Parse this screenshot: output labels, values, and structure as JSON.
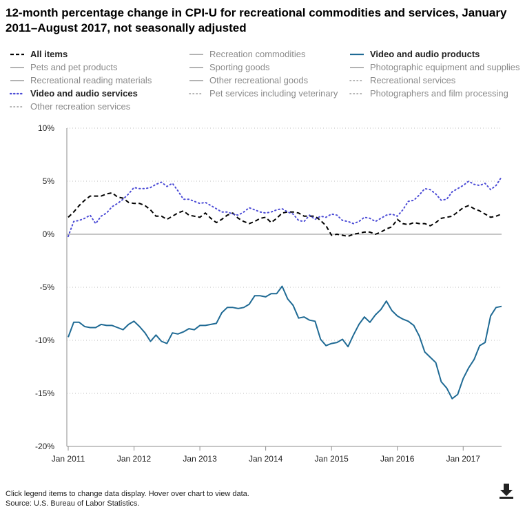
{
  "title": "12-month percentage change in CPI-U for recreational commodities and services, January 2011–August 2017, not seasonally adjusted",
  "legend": [
    {
      "label": "All items",
      "active": true,
      "style": "dashed",
      "color": "#000000"
    },
    {
      "label": "Recreation commodities",
      "active": false,
      "style": "solid",
      "color": "#9a9a9a"
    },
    {
      "label": "Video and audio products",
      "active": true,
      "style": "solid",
      "color": "#1f6a94"
    },
    {
      "label": "Pets and pet products",
      "active": false,
      "style": "solid",
      "color": "#9a9a9a"
    },
    {
      "label": "Sporting goods",
      "active": false,
      "style": "solid",
      "color": "#9a9a9a"
    },
    {
      "label": "Photographic equipment and supplies",
      "active": false,
      "style": "solid",
      "color": "#9a9a9a"
    },
    {
      "label": "Recreational reading materials",
      "active": false,
      "style": "solid",
      "color": "#9a9a9a"
    },
    {
      "label": "Other recreational goods",
      "active": false,
      "style": "solid",
      "color": "#9a9a9a"
    },
    {
      "label": "Recreational services",
      "active": false,
      "style": "dotted",
      "color": "#9a9a9a"
    },
    {
      "label": "Video and audio services",
      "active": true,
      "style": "dotted",
      "color": "#4b4bd6"
    },
    {
      "label": "Pet services including veterinary",
      "active": false,
      "style": "dotted",
      "color": "#9a9a9a"
    },
    {
      "label": "Photographers and film processing",
      "active": false,
      "style": "dotted",
      "color": "#9a9a9a"
    },
    {
      "label": "Other recreation services",
      "active": false,
      "style": "dotted",
      "color": "#9a9a9a"
    }
  ],
  "footer": {
    "note": "Click legend items to change data display. Hover over chart to view data.",
    "source": "Source: U.S. Bureau of Labor Statistics."
  },
  "download_icon": "download-icon",
  "chart_data": {
    "type": "line",
    "title": "12-month percentage change in CPI-U for recreational commodities and services, January 2011–August 2017, not seasonally adjusted",
    "xlabel": "",
    "ylabel": "",
    "ylim": [
      -20,
      10
    ],
    "yticks": [
      10,
      5,
      0,
      -5,
      -10,
      -15,
      -20
    ],
    "ytick_labels": [
      "10%",
      "5%",
      "0%",
      "-5%",
      "-10%",
      "-15%",
      "-20%"
    ],
    "xticks": [
      "Jan 2011",
      "Jan 2012",
      "Jan 2013",
      "Jan 2014",
      "Jan 2015",
      "Jan 2016",
      "Jan 2017"
    ],
    "x_start": "Jan 2011",
    "n_months": 80,
    "grid": "horizontal dotted",
    "legend_position": "top",
    "series": [
      {
        "name": "All items",
        "style": "dashed",
        "color": "#000000",
        "values": [
          1.6,
          2.1,
          2.7,
          3.2,
          3.6,
          3.6,
          3.6,
          3.8,
          3.9,
          3.5,
          3.4,
          3.0,
          2.9,
          2.9,
          2.7,
          2.3,
          1.7,
          1.7,
          1.4,
          1.7,
          2.0,
          2.2,
          1.8,
          1.7,
          1.6,
          2.0,
          1.5,
          1.1,
          1.4,
          1.8,
          2.0,
          1.5,
          1.2,
          1.0,
          1.2,
          1.5,
          1.6,
          1.1,
          1.5,
          2.0,
          2.1,
          2.1,
          2.0,
          1.7,
          1.7,
          1.7,
          1.3,
          0.8,
          -0.1,
          0.0,
          -0.1,
          -0.2,
          0.0,
          0.1,
          0.2,
          0.2,
          0.0,
          0.2,
          0.5,
          0.7,
          1.4,
          1.0,
          0.9,
          1.1,
          1.0,
          1.0,
          0.8,
          1.1,
          1.5,
          1.6,
          1.7,
          2.1,
          2.5,
          2.7,
          2.4,
          2.2,
          1.9,
          1.6,
          1.7,
          1.9
        ]
      },
      {
        "name": "Video and audio products",
        "style": "solid",
        "color": "#1f6a94",
        "values": [
          -9.7,
          -8.3,
          -8.3,
          -8.7,
          -8.8,
          -8.8,
          -8.5,
          -8.6,
          -8.6,
          -8.8,
          -9.0,
          -8.5,
          -8.2,
          -8.7,
          -9.3,
          -10.1,
          -9.5,
          -10.1,
          -10.3,
          -9.3,
          -9.4,
          -9.2,
          -8.9,
          -9.0,
          -8.6,
          -8.6,
          -8.5,
          -8.4,
          -7.4,
          -6.9,
          -6.9,
          -7.0,
          -6.9,
          -6.6,
          -5.8,
          -5.8,
          -5.9,
          -5.6,
          -5.6,
          -4.9,
          -6.1,
          -6.7,
          -7.9,
          -7.8,
          -8.1,
          -8.2,
          -9.9,
          -10.5,
          -10.3,
          -10.2,
          -9.9,
          -10.6,
          -9.5,
          -8.5,
          -7.8,
          -8.3,
          -7.6,
          -7.1,
          -6.3,
          -7.2,
          -7.7,
          -8.0,
          -8.2,
          -8.6,
          -9.6,
          -11.1,
          -11.6,
          -12.1,
          -13.9,
          -14.5,
          -15.5,
          -15.1,
          -13.6,
          -12.6,
          -11.8,
          -10.5,
          -10.2,
          -7.7,
          -6.9,
          -6.8
        ]
      },
      {
        "name": "Video and audio services",
        "style": "dotted",
        "color": "#4b4bd6",
        "values": [
          -0.2,
          1.2,
          1.3,
          1.5,
          1.8,
          1.0,
          1.7,
          2.0,
          2.6,
          2.9,
          3.3,
          3.8,
          4.4,
          4.3,
          4.3,
          4.4,
          4.7,
          4.9,
          4.5,
          4.8,
          4.1,
          3.3,
          3.3,
          3.1,
          2.9,
          3.0,
          2.7,
          2.4,
          2.1,
          2.1,
          1.9,
          1.8,
          2.1,
          2.5,
          2.3,
          2.1,
          2.0,
          2.1,
          2.3,
          2.4,
          2.1,
          1.9,
          1.3,
          1.2,
          1.8,
          1.4,
          1.7,
          1.6,
          1.9,
          1.8,
          1.3,
          1.2,
          1.0,
          1.2,
          1.6,
          1.5,
          1.2,
          1.5,
          1.8,
          1.9,
          1.7,
          2.3,
          3.1,
          3.2,
          3.7,
          4.3,
          4.2,
          3.8,
          3.2,
          3.3,
          4.0,
          4.3,
          4.6,
          5.0,
          4.7,
          4.6,
          4.8,
          4.2,
          4.6,
          5.4
        ]
      }
    ]
  }
}
